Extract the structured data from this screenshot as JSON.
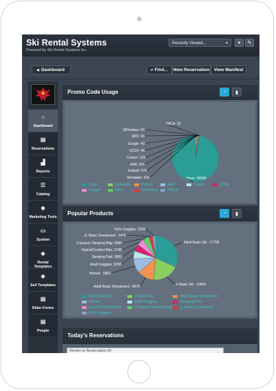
{
  "app": {
    "title": "Ski Rental Systems",
    "subtitle": "Powered by Ski Rental Systems Inc.",
    "recent_label": "Recently Viewed...",
    "recent_caret": "▾",
    "menu_icon": "▾",
    "edit_icon": "✎"
  },
  "navbar": {
    "dashboard": "Dashboard",
    "home_icon": "◀",
    "find": "Find...",
    "find_icon": "⌕",
    "new_reservation": "New Reservation",
    "view_manifest": "View Manifest"
  },
  "sidebar": [
    {
      "label": "Dashboard",
      "icon": "⌂",
      "active": true
    },
    {
      "label": "Reservations",
      "icon": "▤",
      "active": false
    },
    {
      "label": "Reports",
      "icon": "▟",
      "active": false
    },
    {
      "label": "Catalog",
      "icon": "☰",
      "active": false
    },
    {
      "label": "Marketing Tools",
      "icon": "◆",
      "active": false
    },
    {
      "label": "System",
      "icon": "▭",
      "active": false
    },
    {
      "label": "Rental Templates",
      "icon": "◆",
      "active": false
    },
    {
      "label": "Sell Templates",
      "icon": "◆",
      "active": false
    },
    {
      "label": "Rider Forms",
      "icon": "▤",
      "active": false
    },
    {
      "label": "People",
      "icon": "▤",
      "active": false
    }
  ],
  "promo_panel": {
    "title": "Promo Code Usage",
    "pie_icon": "◔",
    "bar_icon": "▮"
  },
  "products_panel": {
    "title": "Popular Products",
    "pie_icon": "◔",
    "bar_icon": "▮"
  },
  "today_panel": {
    "title": "Today's Reservations",
    "search_placeholder": "Renter or Reservation ID"
  },
  "promo_chart": {
    "type": "pie",
    "series": [
      {
        "label": "None",
        "value": 36968,
        "color": "#2a9d96",
        "legend": "None"
      },
      {
        "label": "Snowpals",
        "value": 310,
        "color": "#8ad05e",
        "legend": "Snowpals"
      },
      {
        "label": "Default",
        "value": 278,
        "color": "#f0944e",
        "legend": "Default"
      },
      {
        "label": "AAA",
        "value": 155,
        "color": "#9fbbe4",
        "legend": "AAA"
      },
      {
        "label": "Costco",
        "value": 129,
        "color": "#b8e8e8",
        "legend": "Costco"
      },
      {
        "label": "UCSF",
        "value": 46,
        "color": "#e0206a",
        "legend": "UCSF"
      },
      {
        "label": "Google",
        "value": 40,
        "color": "#f08ad8",
        "legend": "Google"
      },
      {
        "label": "SBO",
        "value": 36,
        "color": "#5fd06a",
        "legend": "SBO"
      },
      {
        "label": "SBYankee",
        "value": 30,
        "color": "#d83a3a",
        "legend": "SBYankee"
      },
      {
        "label": "YMCA",
        "value": 20,
        "color": "#8a9fc8",
        "legend": "YMCA"
      }
    ],
    "display_labels": [
      "None: 36968",
      "Snowpals: 310",
      "Default: 278",
      "AAA: 155",
      "Costco: 129",
      "UCSF: 46",
      "Google: 40",
      "SBO: 36",
      "SBYankee: 30",
      "YMCA: 20"
    ]
  },
  "products_chart": {
    "type": "pie",
    "series": [
      {
        "label": "Adult Basic Ski",
        "value": 17705,
        "color": "#2a9d96",
        "legend": "Adult Basic Ski"
      },
      {
        "label": "Jr Basic Ski",
        "value": 10842,
        "color": "#8ad05e",
        "legend": "Jr Basic Ski"
      },
      {
        "label": "Adult Basic Snowboard",
        "value": 6878,
        "color": "#f0944e",
        "legend": "Adult Basic Snowboard"
      },
      {
        "label": "Helmet",
        "value": 5862,
        "color": "#9fbbe4",
        "legend": "Helmet"
      },
      {
        "label": "Adult Goggles",
        "value": 3208,
        "color": "#b8e8e8",
        "legend": "Adult Goggles"
      },
      {
        "label": "Sleeping Pad",
        "value": 2889,
        "color": "#e0206a",
        "legend": "Sleeping Pad"
      },
      {
        "label": "Hybrid/Comfort Bike",
        "value": 2796,
        "color": "#f08ad8",
        "legend": "Hybrid/Comfort Bike"
      },
      {
        "label": "3 Season Sleeping Bag",
        "value": 2684,
        "color": "#5fd06a",
        "legend": "3 Season Sleeping Bag"
      },
      {
        "label": "Jr. Basic Snowboard",
        "value": 1475,
        "color": "#d83a3a",
        "legend": "Jr. Basic Snowboard"
      },
      {
        "label": "Kid's Goggles",
        "value": 1258,
        "color": "#8a9fc8",
        "legend": "Kid's Goggles"
      }
    ],
    "display_labels": [
      "Adult Basic Ski : 17705",
      "Jr Basic Ski : 10842",
      "Adult Basic Snowboard : 6878",
      "Helmet : 5862",
      "Adult Goggles: 3208",
      "Sleeping Pad: 2889",
      "Hybrid/Comfort Bike: 2796",
      "3 Season Sleeping Bag: 2684",
      "Jr. Basic Snowboard : 1475",
      "Kid's Goggles: 1258"
    ]
  },
  "chart_data": [
    {
      "type": "pie",
      "title": "Promo Code Usage",
      "categories": [
        "None",
        "Snowpals",
        "Default",
        "AAA",
        "Costco",
        "UCSF",
        "Google",
        "SBO",
        "SBYankee",
        "YMCA"
      ],
      "values": [
        36968,
        310,
        278,
        155,
        129,
        46,
        40,
        36,
        30,
        20
      ]
    },
    {
      "type": "pie",
      "title": "Popular Products",
      "categories": [
        "Adult Basic Ski",
        "Jr Basic Ski",
        "Adult Basic Snowboard",
        "Helmet",
        "Adult Goggles",
        "Sleeping Pad",
        "Hybrid/Comfort Bike",
        "3 Season Sleeping Bag",
        "Jr. Basic Snowboard",
        "Kid's Goggles"
      ],
      "values": [
        17705,
        10842,
        6878,
        5862,
        3208,
        2889,
        2796,
        2684,
        1475,
        1258
      ]
    }
  ]
}
